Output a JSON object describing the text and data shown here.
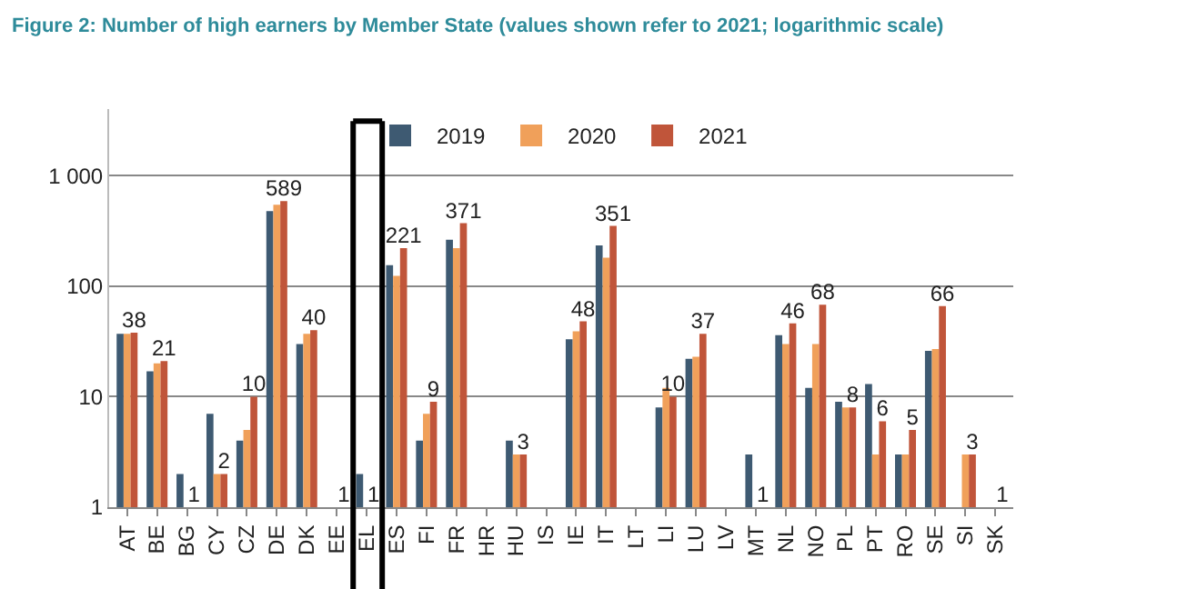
{
  "chart_data": {
    "type": "bar",
    "title": "Figure 2: Number of high earners by Member State (values shown refer to 2021; logarithmic scale)",
    "categories": [
      "AT",
      "BE",
      "BG",
      "CY",
      "CZ",
      "DE",
      "DK",
      "EE",
      "EL",
      "ES",
      "FI",
      "FR",
      "HR",
      "HU",
      "IS",
      "IE",
      "IT",
      "LT",
      "LI",
      "LU",
      "LV",
      "MT",
      "NL",
      "NO",
      "PL",
      "PT",
      "RO",
      "SE",
      "SI",
      "SK"
    ],
    "series": [
      {
        "name": "2019",
        "color": "#3e5a72",
        "values": [
          37,
          17,
          2,
          7,
          4,
          478,
          30,
          null,
          2,
          155,
          4,
          263,
          null,
          4,
          null,
          33,
          234,
          null,
          8,
          22,
          null,
          3,
          36,
          12,
          9,
          13,
          3,
          26,
          null,
          null
        ]
      },
      {
        "name": "2020",
        "color": "#f0a05a",
        "values": [
          37,
          20,
          null,
          2,
          5,
          545,
          37,
          null,
          null,
          124,
          7,
          221,
          null,
          3,
          null,
          39,
          181,
          null,
          12,
          23,
          null,
          null,
          30,
          30,
          8,
          3,
          3,
          27,
          3,
          null
        ]
      },
      {
        "name": "2021",
        "color": "#c0553a",
        "values": [
          38,
          21,
          1,
          2,
          10,
          589,
          40,
          1,
          1,
          221,
          9,
          371,
          null,
          3,
          null,
          48,
          351,
          null,
          10,
          37,
          null,
          1,
          46,
          68,
          8,
          6,
          5,
          66,
          3,
          1
        ],
        "value_labels": [
          "38",
          "21",
          "1",
          "2",
          "10",
          "589",
          "40",
          "1",
          "1",
          "221",
          "9",
          "371",
          null,
          "3",
          null,
          "48",
          "351",
          null,
          "10",
          "37",
          null,
          "1",
          "46",
          "68",
          "8",
          "6",
          "5",
          "66",
          "3",
          "1"
        ]
      }
    ],
    "log": true,
    "ylim": [
      1,
      4000
    ],
    "yticks": [
      1,
      10,
      100,
      {
        "value": 1000,
        "label": "1 000"
      }
    ],
    "grid": "y",
    "legend": "top"
  }
}
